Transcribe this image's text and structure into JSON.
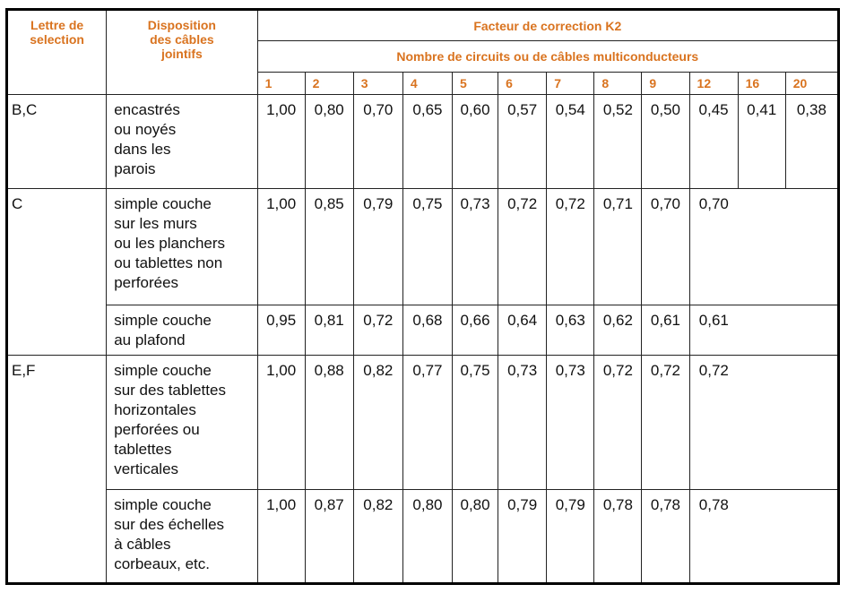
{
  "header": {
    "letter": "Lettre de\nselection",
    "disposition": "Disposition\ndes câbles\njointifs",
    "factor": "Facteur de correction K2",
    "count": "Nombre de circuits ou de câbles multiconducteurs",
    "columns": [
      "1",
      "2",
      "3",
      "4",
      "5",
      "6",
      "7",
      "8",
      "9",
      "12",
      "16",
      "20"
    ]
  },
  "groups": [
    {
      "letter": "B,C",
      "rows": [
        {
          "disposition": "encastrés\nou noyés\ndans les\nparois",
          "values": [
            "1,00",
            "0,80",
            "0,70",
            "0,65",
            "0,60",
            "0,57",
            "0,54",
            "0,52",
            "0,50",
            "0,45",
            "0,41",
            "0,38"
          ]
        }
      ]
    },
    {
      "letter": "C",
      "rows": [
        {
          "disposition": "simple couche\nsur les murs\nou les planchers\nou tablettes non\nperforées",
          "values": [
            "1,00",
            "0,85",
            "0,79",
            "0,75",
            "0,73",
            "0,72",
            "0,72",
            "0,71",
            "0,70",
            "0,70"
          ]
        },
        {
          "disposition": "simple couche\nau plafond",
          "values": [
            "0,95",
            "0,81",
            "0,72",
            "0,68",
            "0,66",
            "0,64",
            "0,63",
            "0,62",
            "0,61",
            "0,61"
          ]
        }
      ]
    },
    {
      "letter": "E,F",
      "rows": [
        {
          "disposition": "simple couche\nsur des tablettes\nhorizontales\nperforées ou\ntablettes\nverticales",
          "values": [
            "1,00",
            "0,88",
            "0,82",
            "0,77",
            "0,75",
            "0,73",
            "0,73",
            "0,72",
            "0,72",
            "0,72"
          ]
        },
        {
          "disposition": "simple couche\nsur des échelles\nà câbles\ncorbeaux, etc.",
          "values": [
            "1,00",
            "0,87",
            "0,82",
            "0,80",
            "0,80",
            "0,79",
            "0,79",
            "0,78",
            "0,78",
            "0,78"
          ]
        }
      ]
    }
  ]
}
